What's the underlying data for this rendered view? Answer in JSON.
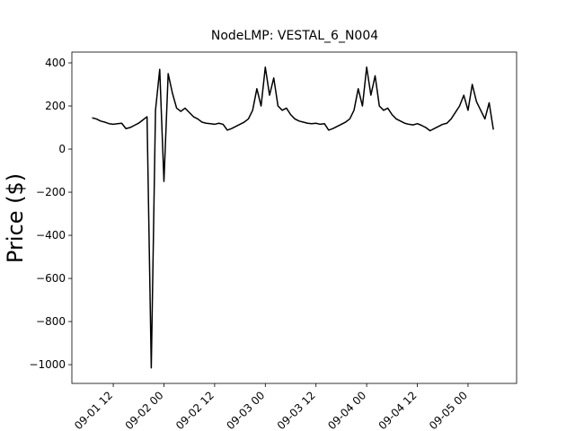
{
  "chart_data": {
    "type": "line",
    "title": "NodeLMP: VESTAL_6_N004",
    "y_label": "Price ($)",
    "x": [
      7,
      8,
      9,
      10,
      11,
      12,
      13,
      14,
      15,
      16,
      17,
      18,
      19,
      20,
      21,
      22,
      23,
      24,
      25,
      26,
      27,
      28,
      29,
      30,
      31,
      32,
      33,
      34,
      35,
      36,
      37,
      38,
      39,
      40,
      41,
      42,
      43,
      44,
      45,
      46,
      47,
      48,
      49,
      50,
      51,
      52,
      53,
      54,
      55,
      56,
      57,
      58,
      59,
      60,
      61,
      62,
      63,
      64,
      65,
      66,
      67,
      68,
      69,
      70,
      71,
      72,
      73,
      74,
      75,
      76,
      77,
      78,
      79,
      80,
      81,
      82,
      83,
      84,
      85,
      86,
      87,
      88,
      89,
      90,
      91,
      92,
      93,
      94,
      95,
      96,
      97,
      98,
      99,
      100,
      101,
      102
    ],
    "series": [
      {
        "name": "NodeLMP",
        "color": "#000000",
        "values": [
          145,
          140,
          130,
          125,
          118,
          115,
          118,
          120,
          95,
          100,
          110,
          120,
          135,
          150,
          -1015,
          180,
          370,
          -150,
          350,
          260,
          190,
          175,
          190,
          170,
          150,
          140,
          125,
          120,
          118,
          115,
          120,
          115,
          88,
          95,
          105,
          115,
          125,
          140,
          180,
          280,
          200,
          380,
          250,
          330,
          200,
          180,
          190,
          160,
          140,
          130,
          125,
          120,
          118,
          120,
          115,
          118,
          88,
          95,
          105,
          115,
          125,
          140,
          180,
          280,
          200,
          380,
          250,
          340,
          200,
          180,
          190,
          160,
          140,
          130,
          120,
          115,
          112,
          118,
          110,
          100,
          85,
          95,
          105,
          115,
          120,
          140,
          170,
          200,
          250,
          180,
          300,
          220,
          180,
          140,
          215,
          90
        ]
      }
    ],
    "xlim": [
      2.2,
      107.5
    ],
    "xticks": [
      {
        "value": 12,
        "label": "09-01 12"
      },
      {
        "value": 24,
        "label": "09-02 00"
      },
      {
        "value": 36,
        "label": "09-02 12"
      },
      {
        "value": 48,
        "label": "09-03 00"
      },
      {
        "value": 60,
        "label": "09-03 12"
      },
      {
        "value": 72,
        "label": "09-04 00"
      },
      {
        "value": 84,
        "label": "09-04 12"
      },
      {
        "value": 96,
        "label": "09-05 00"
      }
    ],
    "ylim": [
      -1087,
      450
    ],
    "yticks": [
      {
        "value": -1000,
        "label": "−1000"
      },
      {
        "value": -800,
        "label": "−800"
      },
      {
        "value": -600,
        "label": "−600"
      },
      {
        "value": -400,
        "label": "−400"
      },
      {
        "value": -200,
        "label": "−200"
      },
      0,
      200,
      400
    ],
    "grid": false
  }
}
